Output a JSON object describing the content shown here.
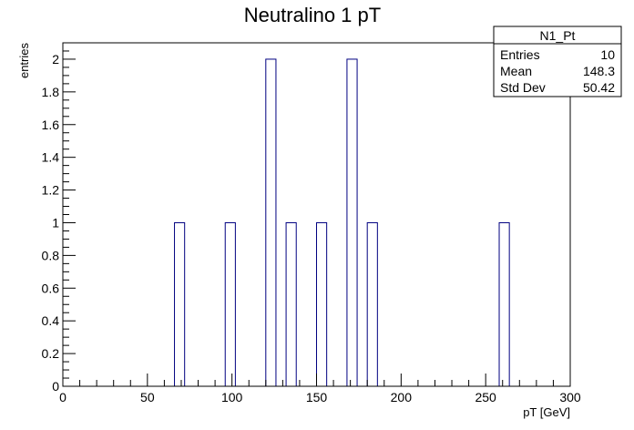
{
  "chart_data": {
    "type": "bar",
    "title": "Neutralino 1 pT",
    "xlabel": "pT [GeV]",
    "ylabel": "entries",
    "xlim": [
      0,
      300
    ],
    "ylim": [
      0,
      2.1
    ],
    "bin_width": 6,
    "x_ticks": [
      0,
      50,
      100,
      150,
      200,
      250,
      300
    ],
    "y_ticks": [
      0,
      0.2,
      0.4,
      0.6,
      0.8,
      1,
      1.2,
      1.4,
      1.6,
      1.8,
      2
    ],
    "x_tick_labels": [
      "0",
      "50",
      "100",
      "150",
      "200",
      "250",
      "300"
    ],
    "y_tick_labels": [
      "0",
      "0.2",
      "0.4",
      "0.6",
      "0.8",
      "1",
      "1.2",
      "1.4",
      "1.6",
      "1.8",
      "2"
    ],
    "bins": [
      {
        "low": 66,
        "high": 72,
        "value": 1
      },
      {
        "low": 96,
        "high": 102,
        "value": 1
      },
      {
        "low": 120,
        "high": 126,
        "value": 2
      },
      {
        "low": 132,
        "high": 138,
        "value": 1
      },
      {
        "low": 150,
        "high": 156,
        "value": 1
      },
      {
        "low": 168,
        "high": 174,
        "value": 2
      },
      {
        "low": 180,
        "high": 186,
        "value": 1
      },
      {
        "low": 258,
        "high": 264,
        "value": 1
      }
    ],
    "line_color": "#000080",
    "grid": false,
    "legend": "none",
    "stats_box": {
      "name": "N1_Pt",
      "rows": [
        {
          "label": "Entries",
          "value": "10"
        },
        {
          "label": "Mean",
          "value": "148.3"
        },
        {
          "label": "Std Dev",
          "value": "50.42"
        }
      ],
      "placement": "top-right"
    }
  }
}
